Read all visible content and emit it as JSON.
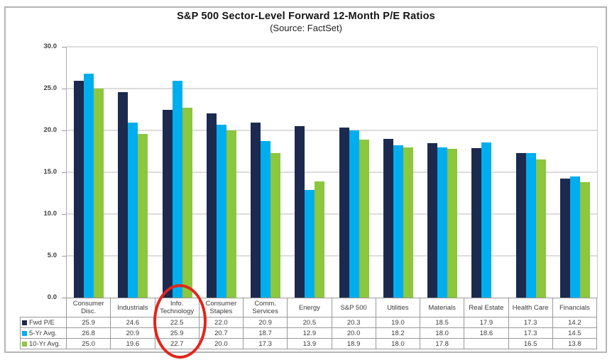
{
  "frame": {
    "background": "#ffffff",
    "border_color": "#b4b4b4"
  },
  "chart_data": {
    "type": "bar",
    "title": "S&P 500 Sector-Level Forward 12-Month P/E Ratios",
    "subtitle": "(Source: FactSet)",
    "categories": [
      "Consumer Disc.",
      "Industrials",
      "Info. Technology",
      "Consumer Staples",
      "Comm. Services",
      "Energy",
      "S&P 500",
      "Utilities",
      "Materials",
      "Real Estate",
      "Health Care",
      "Financials"
    ],
    "series": [
      {
        "name": "Fwd P/E",
        "color": "#1b2a4e",
        "values": [
          25.9,
          24.6,
          22.5,
          22.0,
          20.9,
          20.5,
          20.3,
          19.0,
          18.5,
          17.9,
          17.3,
          14.2
        ]
      },
      {
        "name": "5-Yr Avg.",
        "color": "#00aeef",
        "values": [
          26.8,
          20.9,
          25.9,
          20.7,
          18.7,
          12.9,
          20.0,
          18.2,
          18.0,
          18.6,
          17.3,
          14.5
        ]
      },
      {
        "name": "10-Yr Avg.",
        "color": "#8dc63f",
        "values": [
          25.0,
          19.6,
          22.7,
          20.0,
          17.3,
          13.9,
          18.9,
          18.0,
          17.8,
          null,
          16.5,
          13.8
        ]
      }
    ],
    "ylim": [
      0,
      30
    ],
    "ytick_step": 5,
    "ytick_labels": [
      "0.0",
      "5.0",
      "10.0",
      "15.0",
      "20.0",
      "25.0",
      "30.0"
    ],
    "grid": true,
    "gridline_color": "#dcdcdc",
    "legend_position": "table-row-headers",
    "annotation": {
      "type": "hand-drawn-ellipse",
      "target_category": "Info. Technology",
      "color": "#e1251b"
    }
  }
}
